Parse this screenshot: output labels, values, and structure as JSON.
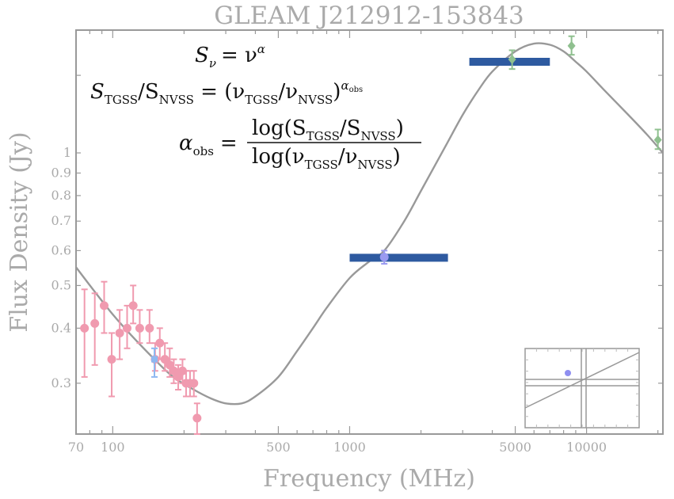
{
  "chart_data": {
    "type": "scatter",
    "title": "GLEAM J212912-153843",
    "xlabel": "Frequency (MHz)",
    "ylabel": "Flux Density (Jy)",
    "xscale": "log",
    "yscale": "log",
    "xlim": [
      70,
      21000
    ],
    "ylim": [
      0.23,
      1.9
    ],
    "xticks": [
      {
        "value": 70,
        "label": "70"
      },
      {
        "value": 100,
        "label": "100"
      },
      {
        "value": 500,
        "label": "500"
      },
      {
        "value": 1000,
        "label": "1000"
      },
      {
        "value": 5000,
        "label": "5000"
      },
      {
        "value": 10000,
        "label": "10000"
      }
    ],
    "yticks": [
      {
        "value": 0.3,
        "label": "0.3"
      },
      {
        "value": 0.4,
        "label": "0.4"
      },
      {
        "value": 0.5,
        "label": "0.5"
      },
      {
        "value": 0.6,
        "label": "0.6"
      },
      {
        "value": 0.7,
        "label": "0.7"
      },
      {
        "value": 0.8,
        "label": "0.8"
      },
      {
        "value": 0.9,
        "label": "0.9"
      },
      {
        "value": 1,
        "label": "1"
      }
    ],
    "series": [
      {
        "marker": "circle",
        "color": "#f09aaf",
        "points": [
          {
            "x": 76,
            "y": 0.4,
            "lo": 0.31,
            "hi": 0.49
          },
          {
            "x": 84,
            "y": 0.41,
            "lo": 0.33,
            "hi": 0.48
          },
          {
            "x": 92,
            "y": 0.45,
            "lo": 0.39,
            "hi": 0.51
          },
          {
            "x": 99,
            "y": 0.34,
            "lo": 0.28,
            "hi": 0.39
          },
          {
            "x": 107,
            "y": 0.39,
            "lo": 0.34,
            "hi": 0.44
          },
          {
            "x": 115,
            "y": 0.4,
            "lo": 0.36,
            "hi": 0.45
          },
          {
            "x": 122,
            "y": 0.45,
            "lo": 0.41,
            "hi": 0.5
          },
          {
            "x": 130,
            "y": 0.4,
            "lo": 0.37,
            "hi": 0.44
          },
          {
            "x": 143,
            "y": 0.4,
            "lo": 0.37,
            "hi": 0.44
          },
          {
            "x": 151,
            "y": 0.34,
            "lo": 0.32,
            "hi": 0.37
          },
          {
            "x": 158,
            "y": 0.37,
            "lo": 0.34,
            "hi": 0.4
          },
          {
            "x": 166,
            "y": 0.34,
            "lo": 0.32,
            "hi": 0.37
          },
          {
            "x": 174,
            "y": 0.33,
            "lo": 0.31,
            "hi": 0.36
          },
          {
            "x": 181,
            "y": 0.32,
            "lo": 0.3,
            "hi": 0.34
          },
          {
            "x": 189,
            "y": 0.31,
            "lo": 0.29,
            "hi": 0.33
          },
          {
            "x": 197,
            "y": 0.32,
            "lo": 0.3,
            "hi": 0.34
          },
          {
            "x": 204,
            "y": 0.3,
            "lo": 0.28,
            "hi": 0.32
          },
          {
            "x": 212,
            "y": 0.3,
            "lo": 0.28,
            "hi": 0.32
          },
          {
            "x": 220,
            "y": 0.3,
            "lo": 0.28,
            "hi": 0.32
          },
          {
            "x": 227,
            "y": 0.25,
            "lo": 0.23,
            "hi": 0.27
          }
        ]
      },
      {
        "marker": "square",
        "color": "#8fb8f0",
        "points": [
          {
            "x": 150,
            "y": 0.34,
            "lo": 0.31,
            "hi": 0.36
          }
        ]
      },
      {
        "marker": "circle",
        "color": "#9a9af0",
        "points": [
          {
            "x": 1400,
            "y": 0.58,
            "lo": 0.56,
            "hi": 0.6
          }
        ]
      },
      {
        "marker": "diamond",
        "color": "#8fc08f",
        "points": [
          {
            "x": 4850,
            "y": 1.63,
            "lo": 1.55,
            "hi": 1.71
          },
          {
            "x": 8640,
            "y": 1.75,
            "lo": 1.67,
            "hi": 1.84
          },
          {
            "x": 20000,
            "y": 1.07,
            "lo": 1.02,
            "hi": 1.13
          }
        ]
      }
    ],
    "bands": [
      {
        "x_from": 1000,
        "x_to": 2600,
        "y": 0.578,
        "color": "#2e5aa0"
      },
      {
        "x_from": 3200,
        "x_to": 7000,
        "y": 1.61,
        "color": "#2e5aa0"
      }
    ],
    "model_curve": {
      "color": "#999999",
      "x": [
        70,
        85,
        100,
        120,
        150,
        180,
        220,
        260,
        300,
        350,
        400,
        500,
        600,
        700,
        800,
        1000,
        1200,
        1400,
        1700,
        2000,
        2500,
        3000,
        3500,
        4000,
        5000,
        6000,
        7000,
        8000,
        9000,
        10000,
        12000,
        15000,
        18000,
        21000
      ],
      "y": [
        0.55,
        0.48,
        0.43,
        0.385,
        0.34,
        0.31,
        0.29,
        0.277,
        0.27,
        0.27,
        0.28,
        0.31,
        0.355,
        0.4,
        0.445,
        0.52,
        0.565,
        0.6,
        0.7,
        0.82,
        1.02,
        1.22,
        1.39,
        1.53,
        1.7,
        1.77,
        1.76,
        1.7,
        1.61,
        1.53,
        1.38,
        1.22,
        1.1,
        1.0
      ]
    },
    "equations": {
      "line1": {
        "lhs": "S",
        "lhs_sub": "ν",
        "rhs": "= ν",
        "rhs_sup": "α"
      },
      "line2": {
        "t1": "S",
        "t1_sub": "TGSS",
        "t2": "/S",
        "t2_sub": "NVSS",
        "t3": " = (ν",
        "t3_sub": "TGSS",
        "t4": "/ν",
        "t4_sub": "NVSS",
        "t5": ")",
        "t5_sup": "α",
        "t5_supsub": "obs"
      },
      "line3": {
        "lhs": "α",
        "lhs_sub": "obs",
        "eq": "=",
        "num": "log(S",
        "num_sub1": "TGSS",
        "num_mid": "/S",
        "num_sub2": "NVSS",
        "num_end": ")",
        "den": "log(ν",
        "den_sub1": "TGSS",
        "den_mid": "/ν",
        "den_sub2": "NVSS",
        "den_end": ")"
      }
    },
    "inset_marker": {
      "color": "#8f8ff0"
    },
    "grid": false,
    "legend": "none"
  }
}
